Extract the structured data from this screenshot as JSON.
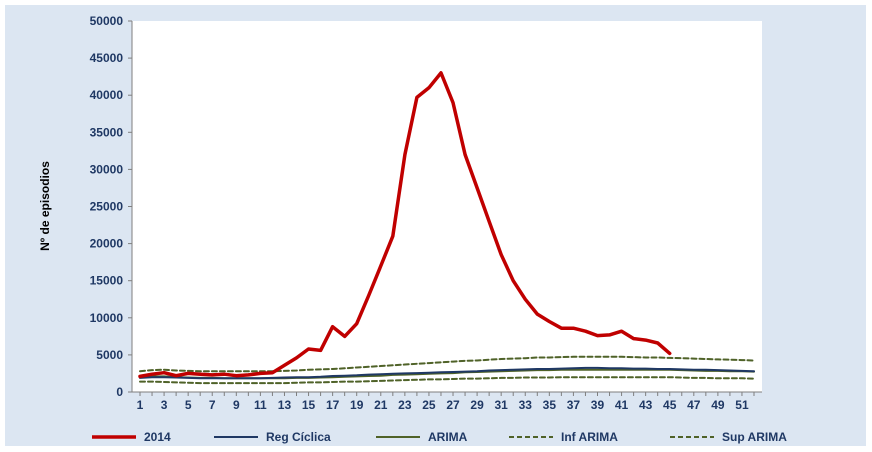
{
  "chart_data": {
    "type": "line",
    "ylabel": "Nº de episodios",
    "xlabel": "",
    "ylim": [
      0,
      50000
    ],
    "yticks": [
      0,
      5000,
      10000,
      15000,
      20000,
      25000,
      30000,
      35000,
      40000,
      45000,
      50000
    ],
    "xlim": [
      1,
      52
    ],
    "xticks": [
      1,
      3,
      5,
      7,
      9,
      11,
      13,
      15,
      17,
      19,
      21,
      23,
      25,
      27,
      29,
      31,
      33,
      35,
      37,
      39,
      41,
      43,
      45,
      47,
      49,
      51
    ],
    "grid": false,
    "legend_position": "bottom",
    "series": [
      {
        "name": "2014",
        "color": "#c00000",
        "dash": "solid",
        "x": [
          1,
          2,
          3,
          4,
          5,
          6,
          7,
          8,
          9,
          10,
          11,
          12,
          13,
          14,
          15,
          16,
          17,
          18,
          19,
          20,
          21,
          22,
          23,
          24,
          25,
          26,
          27,
          28,
          29,
          30,
          31,
          32,
          33,
          34,
          35,
          36,
          37,
          38,
          39,
          40,
          41,
          42,
          43,
          44,
          45
        ],
        "values": [
          2100,
          2400,
          2600,
          2200,
          2500,
          2400,
          2300,
          2400,
          2200,
          2300,
          2500,
          2600,
          3600,
          4600,
          5800,
          5600,
          8800,
          7500,
          9200,
          13000,
          17000,
          21000,
          32000,
          39700,
          41000,
          43000,
          39000,
          32000,
          27500,
          23000,
          18500,
          15000,
          12500,
          10500,
          9500,
          8600,
          8600,
          8200,
          7600,
          7700,
          8200,
          7200,
          7000,
          6600,
          5200
        ]
      },
      {
        "name": "Reg Cíclica",
        "color": "#1f3864",
        "dash": "solid",
        "x": [
          1,
          2,
          3,
          4,
          5,
          6,
          7,
          8,
          9,
          10,
          11,
          12,
          13,
          14,
          15,
          16,
          17,
          18,
          19,
          20,
          21,
          22,
          23,
          24,
          25,
          26,
          27,
          28,
          29,
          30,
          31,
          32,
          33,
          34,
          35,
          36,
          37,
          38,
          39,
          40,
          41,
          42,
          43,
          44,
          45,
          46,
          47,
          48,
          49,
          50,
          51,
          52
        ],
        "values": [
          1900,
          2000,
          2000,
          1950,
          1900,
          1850,
          1850,
          1850,
          1850,
          1850,
          1850,
          1900,
          1950,
          2000,
          2000,
          2050,
          2150,
          2200,
          2250,
          2350,
          2400,
          2450,
          2500,
          2550,
          2600,
          2650,
          2700,
          2750,
          2800,
          2900,
          2950,
          3000,
          3050,
          3100,
          3100,
          3150,
          3200,
          3250,
          3250,
          3200,
          3200,
          3150,
          3150,
          3100,
          3100,
          3050,
          3000,
          3000,
          2950,
          2900,
          2850,
          2800
        ]
      },
      {
        "name": "ARIMA",
        "color": "#4f6228",
        "dash": "solid",
        "x": [
          1,
          2,
          3,
          4,
          5,
          6,
          7,
          8,
          9,
          10,
          11,
          12,
          13,
          14,
          15,
          16,
          17,
          18,
          19,
          20,
          21,
          22,
          23,
          24,
          25,
          26,
          27,
          28,
          29,
          30,
          31,
          32,
          33,
          34,
          35,
          36,
          37,
          38,
          39,
          40,
          41,
          42,
          43,
          44,
          45,
          46,
          47,
          48,
          49,
          50,
          51,
          52
        ],
        "values": [
          2000,
          2100,
          2100,
          2000,
          1950,
          1900,
          1900,
          1850,
          1850,
          1850,
          1850,
          1850,
          1850,
          1900,
          1900,
          1950,
          2000,
          2050,
          2100,
          2150,
          2200,
          2300,
          2350,
          2400,
          2450,
          2500,
          2550,
          2650,
          2700,
          2750,
          2800,
          2850,
          2900,
          2950,
          2950,
          3000,
          3000,
          3000,
          3000,
          3000,
          3000,
          3000,
          3000,
          3000,
          3000,
          2950,
          2900,
          2850,
          2850,
          2800,
          2800,
          2750
        ]
      },
      {
        "name": "Inf ARIMA",
        "color": "#4f6228",
        "dash": "dashed",
        "x": [
          1,
          2,
          3,
          4,
          5,
          6,
          7,
          8,
          9,
          10,
          11,
          12,
          13,
          14,
          15,
          16,
          17,
          18,
          19,
          20,
          21,
          22,
          23,
          24,
          25,
          26,
          27,
          28,
          29,
          30,
          31,
          32,
          33,
          34,
          35,
          36,
          37,
          38,
          39,
          40,
          41,
          42,
          43,
          44,
          45,
          46,
          47,
          48,
          49,
          50,
          51,
          52
        ],
        "values": [
          1400,
          1400,
          1350,
          1300,
          1250,
          1200,
          1200,
          1200,
          1200,
          1200,
          1200,
          1200,
          1200,
          1250,
          1300,
          1300,
          1350,
          1400,
          1400,
          1450,
          1500,
          1550,
          1600,
          1650,
          1700,
          1700,
          1750,
          1800,
          1800,
          1850,
          1900,
          1900,
          1950,
          1950,
          1950,
          2000,
          2000,
          2000,
          2000,
          2000,
          2000,
          2000,
          2000,
          2000,
          2000,
          1950,
          1900,
          1900,
          1850,
          1850,
          1850,
          1800
        ]
      },
      {
        "name": "Sup ARIMA",
        "color": "#4f6228",
        "dash": "dashed",
        "x": [
          1,
          2,
          3,
          4,
          5,
          6,
          7,
          8,
          9,
          10,
          11,
          12,
          13,
          14,
          15,
          16,
          17,
          18,
          19,
          20,
          21,
          22,
          23,
          24,
          25,
          26,
          27,
          28,
          29,
          30,
          31,
          32,
          33,
          34,
          35,
          36,
          37,
          38,
          39,
          40,
          41,
          42,
          43,
          44,
          45,
          46,
          47,
          48,
          49,
          50,
          51,
          52
        ],
        "values": [
          2800,
          2950,
          3000,
          2900,
          2850,
          2800,
          2800,
          2800,
          2800,
          2800,
          2800,
          2800,
          2850,
          2900,
          3000,
          3050,
          3100,
          3200,
          3300,
          3400,
          3500,
          3600,
          3700,
          3800,
          3900,
          4000,
          4100,
          4200,
          4250,
          4350,
          4450,
          4500,
          4550,
          4650,
          4650,
          4700,
          4750,
          4750,
          4750,
          4750,
          4750,
          4700,
          4650,
          4650,
          4600,
          4550,
          4500,
          4450,
          4400,
          4350,
          4300,
          4250
        ]
      }
    ]
  }
}
